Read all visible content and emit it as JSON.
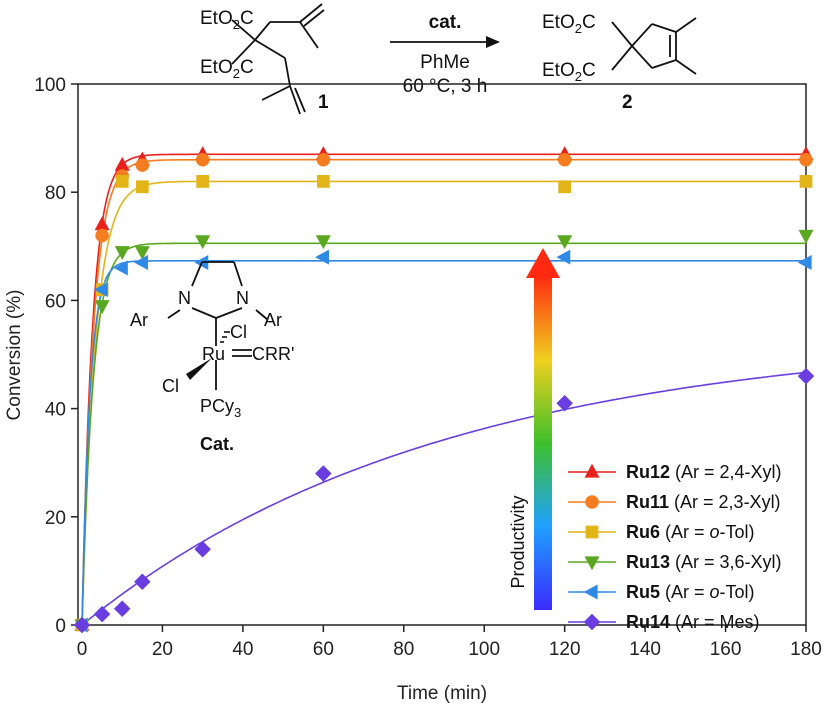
{
  "chart_data": {
    "type": "scatter",
    "xlabel": "Time (min)",
    "ylabel": "Conversion (%)",
    "xlim": [
      0,
      180
    ],
    "ylim": [
      0,
      100
    ],
    "xticks": [
      0,
      20,
      40,
      60,
      80,
      100,
      120,
      140,
      160,
      180
    ],
    "yticks": [
      0,
      20,
      40,
      60,
      80,
      100
    ],
    "grid": false,
    "legend_position": "bottom-right",
    "legend_axis_label": "Productivity",
    "series": [
      {
        "name": "Ru12",
        "legend_suffix": "(Ar = 2,4-Xyl)",
        "color": "#e8211c",
        "marker": "triangle-up",
        "x": [
          0,
          5,
          10,
          15,
          30,
          60,
          120,
          180
        ],
        "y": [
          0,
          74,
          85,
          86,
          87,
          87,
          87,
          87
        ]
      },
      {
        "name": "Ru11",
        "legend_suffix": "(Ar = 2,3-Xyl)",
        "color": "#f57d1f",
        "marker": "circle",
        "x": [
          0,
          5,
          10,
          15,
          30,
          60,
          120,
          180
        ],
        "y": [
          0,
          72,
          83,
          85,
          86,
          86,
          86,
          86
        ]
      },
      {
        "name": "Ru6",
        "legend_suffix": "(Ar = o-Tol)",
        "color": "#e2b418",
        "marker": "square",
        "x": [
          0,
          5,
          10,
          15,
          30,
          60,
          120,
          180
        ],
        "y": [
          0,
          62,
          82,
          81,
          82,
          82,
          81,
          82
        ]
      },
      {
        "name": "Ru13",
        "legend_suffix": "(Ar = 3,6-Xyl)",
        "color": "#5aa820",
        "marker": "triangle-down",
        "x": [
          0,
          5,
          10,
          15,
          30,
          60,
          120,
          180
        ],
        "y": [
          0,
          59,
          69,
          69,
          71,
          71,
          71,
          72
        ]
      },
      {
        "name": "Ru5",
        "legend_suffix": "(Ar = o-Tol)",
        "color": "#2f8ae6",
        "marker": "triangle-left",
        "x": [
          0,
          5,
          10,
          15,
          30,
          60,
          120,
          180
        ],
        "y": [
          0,
          62,
          66,
          67,
          67,
          68,
          68,
          67
        ]
      },
      {
        "name": "Ru14",
        "legend_suffix": "(Ar = Mes)",
        "color": "#6a3de0",
        "marker": "diamond",
        "x": [
          0,
          5,
          10,
          15,
          30,
          60,
          120,
          180
        ],
        "y": [
          0,
          2,
          3,
          8,
          14,
          28,
          41,
          46
        ]
      }
    ]
  },
  "scheme": {
    "substrate_ester_1": "EtO",
    "substrate_ester_1_sub": "2",
    "substrate_ester_1_tail": "C",
    "substrate_ester_2": "EtO",
    "substrate_ester_2_sub": "2",
    "substrate_ester_2_tail": "C",
    "substrate_label": "1",
    "arrow_top": "cat.",
    "arrow_bottom_1": "PhMe",
    "arrow_bottom_2": "60 °C, 3 h",
    "product_ester_1": "EtO",
    "product_ester_1_sub": "2",
    "product_ester_1_tail": "C",
    "product_ester_2": "EtO",
    "product_ester_2_sub": "2",
    "product_ester_2_tail": "C",
    "product_label": "2"
  },
  "catalyst": {
    "ar_left": "Ar",
    "n_left": "N",
    "n_right": "N",
    "ar_right": "Ar",
    "cl_top": "Cl",
    "ru": "Ru",
    "alkylidene": "CRR'",
    "cl_left": "Cl",
    "phosphine": "PCy",
    "phosphine_sub": "3",
    "label": "Cat."
  }
}
